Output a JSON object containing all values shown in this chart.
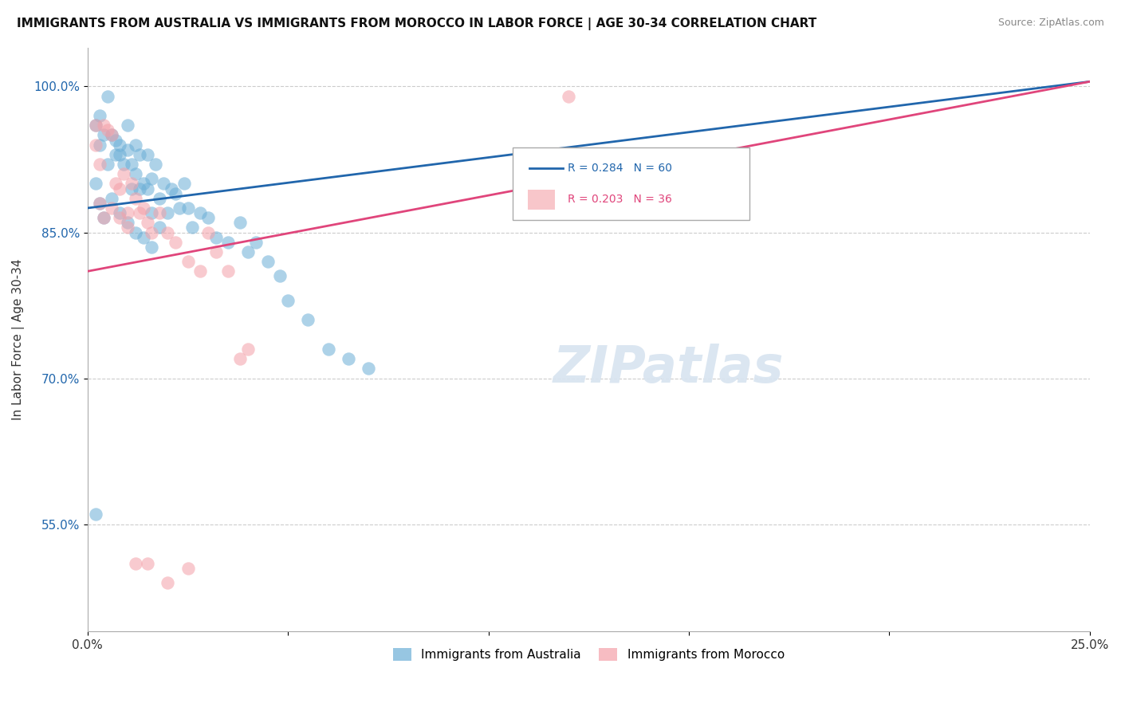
{
  "title": "IMMIGRANTS FROM AUSTRALIA VS IMMIGRANTS FROM MOROCCO IN LABOR FORCE | AGE 30-34 CORRELATION CHART",
  "source": "Source: ZipAtlas.com",
  "ylabel": "In Labor Force | Age 30-34",
  "xlim": [
    0.0,
    0.25
  ],
  "ylim": [
    0.44,
    1.04
  ],
  "xticks": [
    0.0,
    0.05,
    0.1,
    0.15,
    0.2,
    0.25
  ],
  "xticklabels": [
    "0.0%",
    "",
    "",
    "",
    "",
    "25.0%"
  ],
  "yticks": [
    0.55,
    0.7,
    0.85,
    1.0
  ],
  "yticklabels": [
    "55.0%",
    "70.0%",
    "85.0%",
    "100.0%"
  ],
  "blue_R": 0.284,
  "blue_N": 60,
  "pink_R": 0.203,
  "pink_N": 36,
  "blue_color": "#6baed6",
  "pink_color": "#f4a0a8",
  "blue_line_color": "#2166ac",
  "pink_line_color": "#e0457b",
  "legend_australia": "Immigrants from Australia",
  "legend_morocco": "Immigrants from Morocco",
  "blue_scatter_x": [
    0.002,
    0.003,
    0.003,
    0.004,
    0.005,
    0.005,
    0.006,
    0.007,
    0.007,
    0.008,
    0.008,
    0.009,
    0.01,
    0.01,
    0.011,
    0.011,
    0.012,
    0.012,
    0.013,
    0.013,
    0.014,
    0.015,
    0.015,
    0.016,
    0.016,
    0.017,
    0.018,
    0.019,
    0.02,
    0.021,
    0.022,
    0.023,
    0.024,
    0.025,
    0.026,
    0.028,
    0.03,
    0.032,
    0.035,
    0.038,
    0.04,
    0.042,
    0.045,
    0.048,
    0.05,
    0.055,
    0.06,
    0.065,
    0.07,
    0.002,
    0.003,
    0.004,
    0.006,
    0.008,
    0.01,
    0.012,
    0.014,
    0.016,
    0.018,
    0.002
  ],
  "blue_scatter_y": [
    0.96,
    0.94,
    0.97,
    0.95,
    0.99,
    0.92,
    0.95,
    0.93,
    0.945,
    0.94,
    0.93,
    0.92,
    0.935,
    0.96,
    0.895,
    0.92,
    0.91,
    0.94,
    0.895,
    0.93,
    0.9,
    0.93,
    0.895,
    0.905,
    0.87,
    0.92,
    0.885,
    0.9,
    0.87,
    0.895,
    0.89,
    0.875,
    0.9,
    0.875,
    0.855,
    0.87,
    0.865,
    0.845,
    0.84,
    0.86,
    0.83,
    0.84,
    0.82,
    0.805,
    0.78,
    0.76,
    0.73,
    0.72,
    0.71,
    0.9,
    0.88,
    0.865,
    0.885,
    0.87,
    0.86,
    0.85,
    0.845,
    0.835,
    0.855,
    0.56
  ],
  "pink_scatter_x": [
    0.002,
    0.003,
    0.004,
    0.005,
    0.006,
    0.007,
    0.008,
    0.009,
    0.01,
    0.011,
    0.012,
    0.013,
    0.014,
    0.015,
    0.016,
    0.018,
    0.02,
    0.022,
    0.025,
    0.028,
    0.03,
    0.032,
    0.035,
    0.038,
    0.04,
    0.002,
    0.003,
    0.004,
    0.006,
    0.008,
    0.01,
    0.012,
    0.015,
    0.02,
    0.025,
    0.12
  ],
  "pink_scatter_y": [
    0.94,
    0.92,
    0.96,
    0.955,
    0.95,
    0.9,
    0.895,
    0.91,
    0.87,
    0.9,
    0.885,
    0.87,
    0.875,
    0.86,
    0.85,
    0.87,
    0.85,
    0.84,
    0.82,
    0.81,
    0.85,
    0.83,
    0.81,
    0.72,
    0.73,
    0.96,
    0.88,
    0.865,
    0.875,
    0.865,
    0.855,
    0.51,
    0.51,
    0.49,
    0.505,
    0.99
  ],
  "watermark": "ZIPatlas",
  "watermark_color": "#d8e4f0"
}
